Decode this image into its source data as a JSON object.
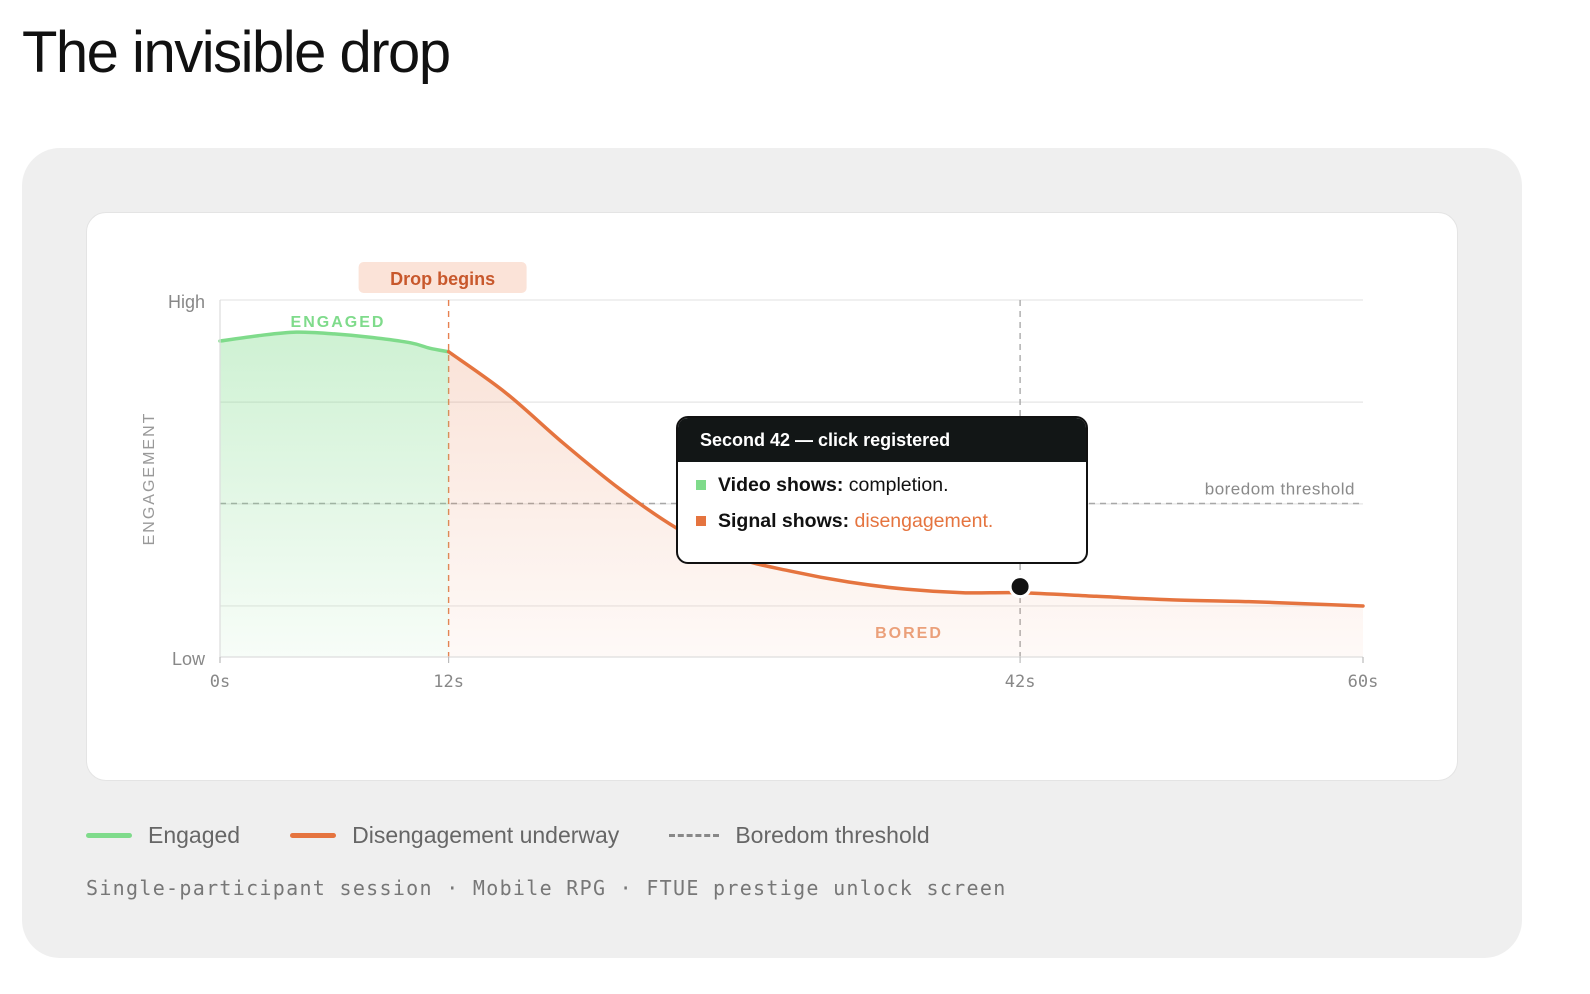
{
  "page": {
    "title": "The invisible drop",
    "footnote": "Single-participant session · Mobile RPG · FTUE prestige unlock screen"
  },
  "colors": {
    "engaged": "#7fdb8b",
    "disengaged": "#e5743f",
    "threshold": "#999999",
    "grid": "#e6e6e6",
    "drop_label_bg": "#fbe3d8",
    "drop_label_text": "#c8582c",
    "tooltip_header": "#121616"
  },
  "chart_data": {
    "type": "area",
    "ylabel": "ENGAGEMENT",
    "yticks": [
      "High",
      "Low"
    ],
    "ylim": [
      0,
      1
    ],
    "xlim": [
      0,
      60
    ],
    "x_unit": "s",
    "xticks": [
      {
        "value": 0,
        "label": "0s"
      },
      {
        "value": 12,
        "label": "12s"
      },
      {
        "value": 42,
        "label": "42s"
      },
      {
        "value": 60,
        "label": "60s"
      }
    ],
    "grid": true,
    "gridlines_y": [
      1.0,
      0.714,
      0.429,
      0.143
    ],
    "series": [
      {
        "name": "Engaged",
        "color": "#7fdb8b",
        "x": [
          0,
          2,
          4,
          6,
          8,
          10,
          11,
          12
        ],
        "y": [
          0.885,
          0.9,
          0.91,
          0.905,
          0.895,
          0.88,
          0.865,
          0.855
        ]
      },
      {
        "name": "Disengagement underway",
        "color": "#e5743f",
        "x": [
          12,
          15,
          18,
          21,
          24,
          27,
          30,
          33,
          36,
          39,
          42,
          46,
          50,
          54,
          58,
          60
        ],
        "y": [
          0.855,
          0.74,
          0.6,
          0.47,
          0.36,
          0.28,
          0.24,
          0.21,
          0.19,
          0.18,
          0.18,
          0.17,
          0.16,
          0.155,
          0.147,
          0.143
        ]
      }
    ],
    "threshold": {
      "name": "Boredom threshold",
      "y": 0.43,
      "label": "boredom threshold"
    },
    "markers": [
      {
        "x": 12,
        "label": "Drop begins"
      },
      {
        "x": 42
      }
    ],
    "highlight_point": {
      "x": 42,
      "y": 0.2
    },
    "zone_labels": {
      "engaged": "ENGAGED",
      "bored": "BORED"
    },
    "legend": {
      "position": "bottom-left"
    }
  },
  "tooltip": {
    "title": "Second 42 — click registered",
    "rows": [
      {
        "label": "Video shows:",
        "value": "completion.",
        "color": "#7fdb8b",
        "value_color": "#111111"
      },
      {
        "label": "Signal shows:",
        "value": "disengagement.",
        "color": "#e5743f",
        "value_color": "#e5743f"
      }
    ]
  },
  "legend": {
    "items": [
      {
        "label": "Engaged",
        "style": "solid",
        "color": "#7fdb8b"
      },
      {
        "label": "Disengagement underway",
        "style": "solid",
        "color": "#e5743f"
      },
      {
        "label": "Boredom threshold",
        "style": "dashed",
        "color": "#888888"
      }
    ]
  }
}
